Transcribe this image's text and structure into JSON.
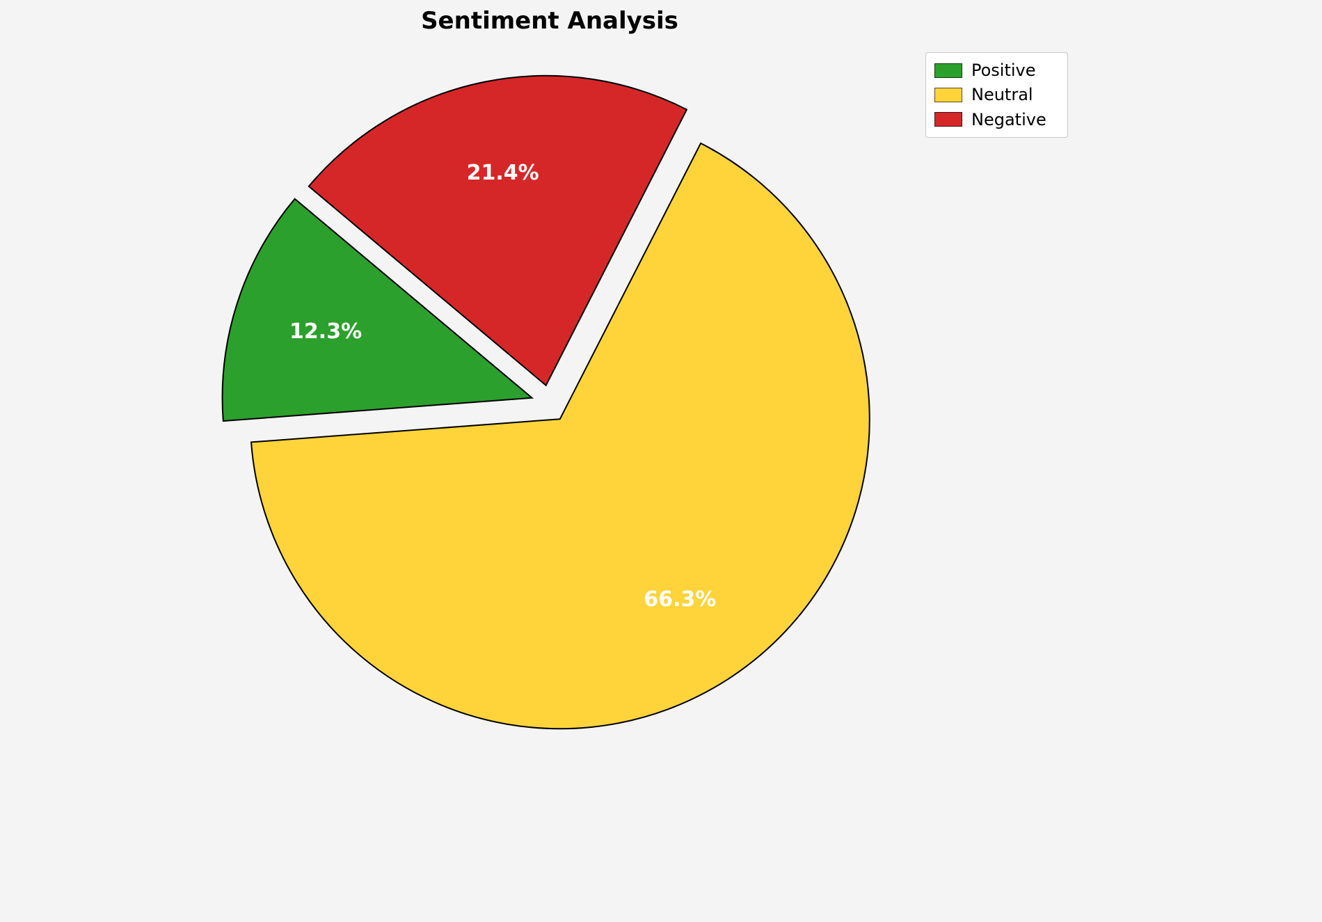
{
  "page": {
    "background": "#f4f4f5"
  },
  "chart_data": {
    "type": "pie",
    "title": "Sentiment Analysis",
    "categories": [
      "Positive",
      "Neutral",
      "Negative"
    ],
    "values": [
      12.3,
      66.3,
      21.4
    ],
    "percent_labels": [
      "12.3%",
      "66.3%",
      "21.4%"
    ],
    "colors": [
      "#2ca02c",
      "#FFD43B",
      "#d62728"
    ],
    "edge_color": "#000000",
    "label_color": "#ffffff",
    "start_angle": 140,
    "direction": "counterclockwise",
    "explode": 0.06,
    "pct_distance": 0.7,
    "legend": {
      "position": "upper right",
      "entries": [
        "Positive",
        "Neutral",
        "Negative"
      ]
    }
  }
}
